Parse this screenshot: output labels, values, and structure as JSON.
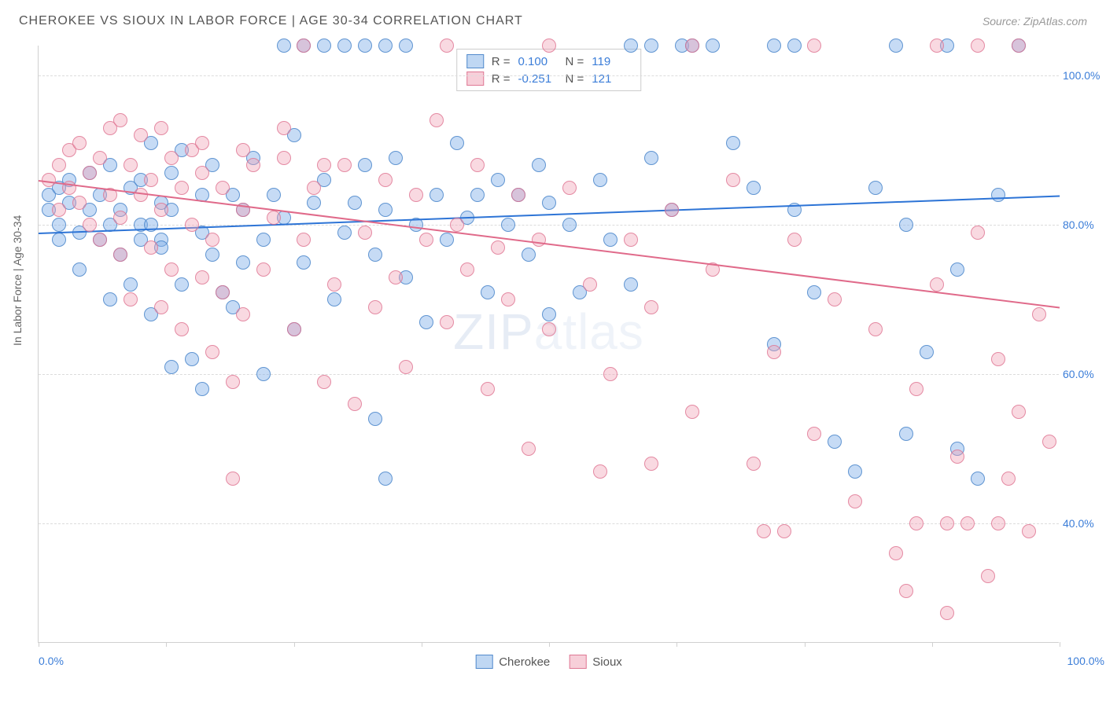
{
  "title": "CHEROKEE VS SIOUX IN LABOR FORCE | AGE 30-34 CORRELATION CHART",
  "source": "Source: ZipAtlas.com",
  "watermark_a": "ZIP",
  "watermark_b": "atlas",
  "y_axis_label": "In Labor Force | Age 30-34",
  "chart": {
    "type": "scatter",
    "xlim": [
      0,
      100
    ],
    "ylim": [
      24,
      104
    ],
    "y_ticks": [
      40,
      60,
      80,
      100
    ],
    "y_tick_labels": [
      "40.0%",
      "60.0%",
      "80.0%",
      "100.0%"
    ],
    "x_ticks": [
      0,
      12.5,
      25,
      37.5,
      50,
      62.5,
      75,
      87.5,
      100
    ],
    "x_min_label": "0.0%",
    "x_max_label": "100.0%",
    "background_color": "#ffffff",
    "grid_color": "#dcdcdc",
    "series": [
      {
        "name": "Cherokee",
        "color_fill": "rgba(128,176,232,0.45)",
        "color_stroke": "rgba(70,130,200,0.8)",
        "R": "0.100",
        "N": "119",
        "trend": {
          "x1": 0,
          "y1": 79,
          "x2": 100,
          "y2": 84,
          "color": "#2d74d6"
        },
        "points": [
          [
            1,
            84
          ],
          [
            1,
            82
          ],
          [
            2,
            85
          ],
          [
            2,
            80
          ],
          [
            2,
            78
          ],
          [
            3,
            83
          ],
          [
            3,
            86
          ],
          [
            4,
            79
          ],
          [
            4,
            74
          ],
          [
            5,
            82
          ],
          [
            5,
            87
          ],
          [
            6,
            78
          ],
          [
            6,
            84
          ],
          [
            7,
            70
          ],
          [
            7,
            88
          ],
          [
            8,
            76
          ],
          [
            8,
            82
          ],
          [
            9,
            85
          ],
          [
            9,
            72
          ],
          [
            10,
            80
          ],
          [
            10,
            86
          ],
          [
            11,
            91
          ],
          [
            11,
            68
          ],
          [
            12,
            78
          ],
          [
            12,
            83
          ],
          [
            13,
            82
          ],
          [
            13,
            87
          ],
          [
            14,
            72
          ],
          [
            14,
            90
          ],
          [
            15,
            62
          ],
          [
            16,
            84
          ],
          [
            16,
            79
          ],
          [
            17,
            76
          ],
          [
            17,
            88
          ],
          [
            18,
            71
          ],
          [
            19,
            69
          ],
          [
            19,
            84
          ],
          [
            20,
            82
          ],
          [
            20,
            75
          ],
          [
            21,
            89
          ],
          [
            22,
            60
          ],
          [
            22,
            78
          ],
          [
            23,
            84
          ],
          [
            24,
            81
          ],
          [
            25,
            92
          ],
          [
            25,
            66
          ],
          [
            26,
            75
          ],
          [
            27,
            83
          ],
          [
            28,
            86
          ],
          [
            29,
            70
          ],
          [
            30,
            79
          ],
          [
            31,
            83
          ],
          [
            32,
            88
          ],
          [
            33,
            54
          ],
          [
            33,
            76
          ],
          [
            34,
            82
          ],
          [
            34,
            46
          ],
          [
            35,
            89
          ],
          [
            36,
            73
          ],
          [
            37,
            80
          ],
          [
            38,
            67
          ],
          [
            39,
            84
          ],
          [
            40,
            78
          ],
          [
            41,
            91
          ],
          [
            42,
            81
          ],
          [
            43,
            84
          ],
          [
            44,
            71
          ],
          [
            45,
            86
          ],
          [
            46,
            80
          ],
          [
            47,
            84
          ],
          [
            48,
            76
          ],
          [
            49,
            88
          ],
          [
            50,
            68
          ],
          [
            50,
            83
          ],
          [
            52,
            80
          ],
          [
            53,
            71
          ],
          [
            55,
            86
          ],
          [
            56,
            78
          ],
          [
            58,
            72
          ],
          [
            60,
            89
          ],
          [
            62,
            82
          ],
          [
            63,
            104
          ],
          [
            64,
            104
          ],
          [
            66,
            104
          ],
          [
            68,
            91
          ],
          [
            70,
            85
          ],
          [
            72,
            64
          ],
          [
            74,
            82
          ],
          [
            76,
            71
          ],
          [
            78,
            51
          ],
          [
            80,
            47
          ],
          [
            82,
            85
          ],
          [
            84,
            104
          ],
          [
            85,
            80
          ],
          [
            87,
            63
          ],
          [
            89,
            104
          ],
          [
            90,
            74
          ],
          [
            92,
            46
          ],
          [
            94,
            84
          ],
          [
            96,
            104
          ],
          [
            24,
            104
          ],
          [
            26,
            104
          ],
          [
            28,
            104
          ],
          [
            30,
            104
          ],
          [
            32,
            104
          ],
          [
            34,
            104
          ],
          [
            36,
            104
          ],
          [
            58,
            104
          ],
          [
            60,
            104
          ],
          [
            72,
            104
          ],
          [
            74,
            104
          ],
          [
            13,
            61
          ],
          [
            16,
            58
          ],
          [
            11,
            80
          ],
          [
            12,
            77
          ],
          [
            7,
            80
          ],
          [
            10,
            78
          ],
          [
            85,
            52
          ],
          [
            90,
            50
          ]
        ]
      },
      {
        "name": "Sioux",
        "color_fill": "rgba(240,160,180,0.40)",
        "color_stroke": "rgba(220,110,140,0.75)",
        "R": "-0.251",
        "N": "121",
        "trend": {
          "x1": 0,
          "y1": 86,
          "x2": 100,
          "y2": 69,
          "color": "#e06a8a"
        },
        "points": [
          [
            1,
            86
          ],
          [
            2,
            88
          ],
          [
            2,
            82
          ],
          [
            3,
            85
          ],
          [
            3,
            90
          ],
          [
            4,
            83
          ],
          [
            4,
            91
          ],
          [
            5,
            80
          ],
          [
            5,
            87
          ],
          [
            6,
            89
          ],
          [
            6,
            78
          ],
          [
            7,
            84
          ],
          [
            7,
            93
          ],
          [
            8,
            81
          ],
          [
            8,
            76
          ],
          [
            9,
            88
          ],
          [
            9,
            70
          ],
          [
            10,
            84
          ],
          [
            10,
            92
          ],
          [
            11,
            77
          ],
          [
            11,
            86
          ],
          [
            12,
            82
          ],
          [
            12,
            69
          ],
          [
            13,
            89
          ],
          [
            13,
            74
          ],
          [
            14,
            85
          ],
          [
            14,
            66
          ],
          [
            15,
            90
          ],
          [
            15,
            80
          ],
          [
            16,
            73
          ],
          [
            16,
            87
          ],
          [
            17,
            78
          ],
          [
            17,
            63
          ],
          [
            18,
            85
          ],
          [
            18,
            71
          ],
          [
            19,
            59
          ],
          [
            20,
            82
          ],
          [
            20,
            68
          ],
          [
            21,
            88
          ],
          [
            22,
            74
          ],
          [
            23,
            81
          ],
          [
            24,
            93
          ],
          [
            25,
            66
          ],
          [
            26,
            78
          ],
          [
            27,
            85
          ],
          [
            28,
            59
          ],
          [
            29,
            72
          ],
          [
            30,
            88
          ],
          [
            31,
            56
          ],
          [
            32,
            79
          ],
          [
            33,
            69
          ],
          [
            34,
            86
          ],
          [
            35,
            73
          ],
          [
            36,
            61
          ],
          [
            37,
            84
          ],
          [
            38,
            78
          ],
          [
            39,
            94
          ],
          [
            40,
            67
          ],
          [
            41,
            80
          ],
          [
            42,
            74
          ],
          [
            43,
            88
          ],
          [
            44,
            58
          ],
          [
            45,
            77
          ],
          [
            46,
            70
          ],
          [
            47,
            84
          ],
          [
            48,
            50
          ],
          [
            49,
            78
          ],
          [
            50,
            66
          ],
          [
            52,
            85
          ],
          [
            54,
            72
          ],
          [
            56,
            60
          ],
          [
            58,
            78
          ],
          [
            60,
            69
          ],
          [
            62,
            82
          ],
          [
            64,
            55
          ],
          [
            66,
            74
          ],
          [
            68,
            86
          ],
          [
            70,
            48
          ],
          [
            71,
            39
          ],
          [
            72,
            63
          ],
          [
            74,
            78
          ],
          [
            76,
            52
          ],
          [
            78,
            70
          ],
          [
            80,
            43
          ],
          [
            82,
            66
          ],
          [
            84,
            36
          ],
          [
            85,
            31
          ],
          [
            86,
            58
          ],
          [
            88,
            72
          ],
          [
            89,
            28
          ],
          [
            90,
            49
          ],
          [
            91,
            40
          ],
          [
            92,
            79
          ],
          [
            93,
            33
          ],
          [
            94,
            62
          ],
          [
            95,
            46
          ],
          [
            96,
            55
          ],
          [
            97,
            39
          ],
          [
            98,
            68
          ],
          [
            99,
            51
          ],
          [
            26,
            104
          ],
          [
            40,
            104
          ],
          [
            50,
            104
          ],
          [
            64,
            104
          ],
          [
            76,
            104
          ],
          [
            88,
            104
          ],
          [
            92,
            104
          ],
          [
            96,
            104
          ],
          [
            8,
            94
          ],
          [
            12,
            93
          ],
          [
            16,
            91
          ],
          [
            20,
            90
          ],
          [
            24,
            89
          ],
          [
            28,
            88
          ],
          [
            19,
            46
          ],
          [
            55,
            47
          ],
          [
            60,
            48
          ],
          [
            73,
            39
          ],
          [
            86,
            40
          ],
          [
            89,
            40
          ],
          [
            94,
            40
          ]
        ]
      }
    ]
  },
  "bottom_legend": [
    {
      "swatch": "blue",
      "label": "Cherokee"
    },
    {
      "swatch": "pink",
      "label": "Sioux"
    }
  ]
}
